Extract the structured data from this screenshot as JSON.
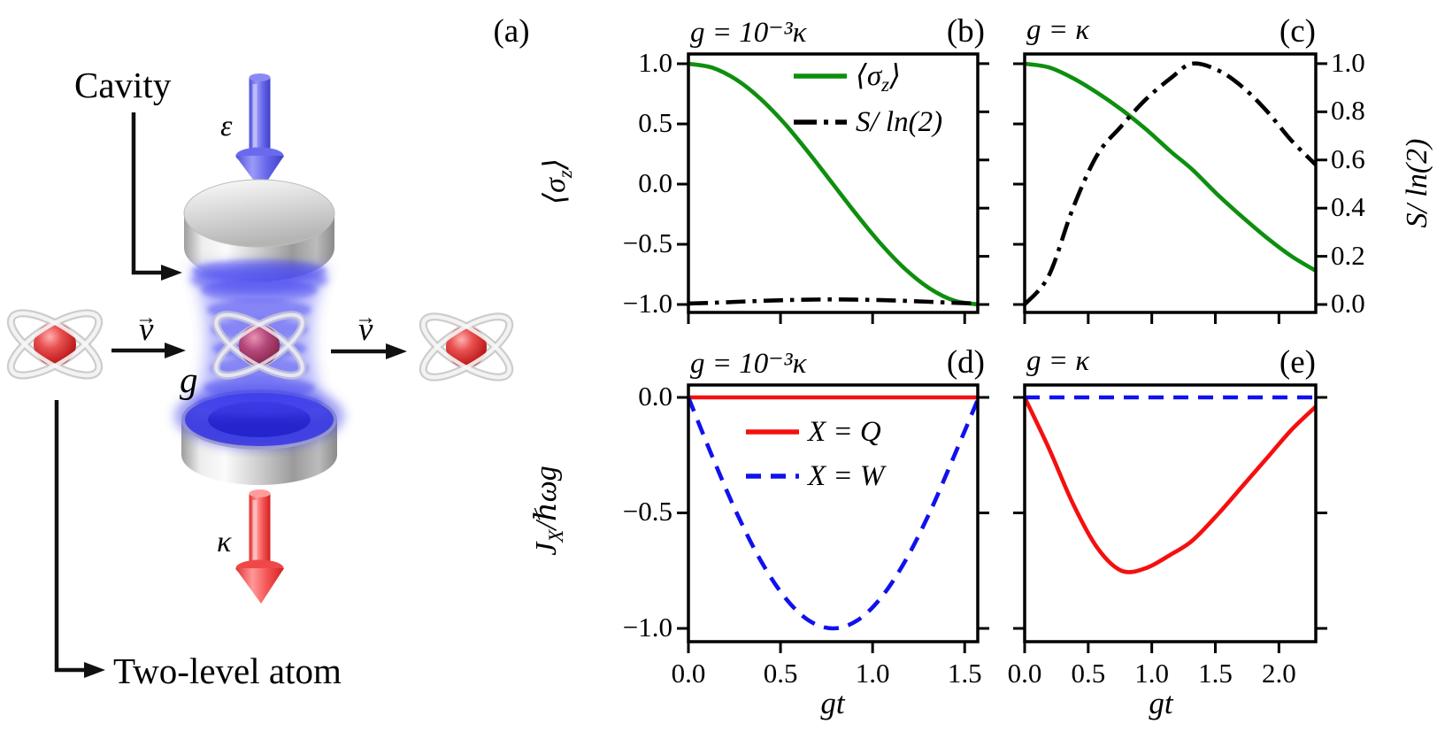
{
  "figure_labels": {
    "a": "(a)",
    "b": "(b)",
    "c": "(c)",
    "d": "(d)",
    "e": "(e)"
  },
  "diagram": {
    "cavity_label": "Cavity",
    "pump_symbol": "ε",
    "coupling_symbol": "g",
    "decay_symbol": "κ",
    "velocity_symbol": "v",
    "velocity_arrow": "→",
    "atom_caption": "Two-level atom"
  },
  "titles": {
    "weak": "g = 10⁻³κ",
    "strong": "g = κ"
  },
  "axis_labels": {
    "sigma_pre": "⟨σ",
    "sigma_sub": "z",
    "sigma_post": "⟩",
    "entropy": "S/ ln(2)",
    "heat_pre": "J",
    "heat_sub": "X",
    "heat_post": "/ℏωg",
    "x": "gt"
  },
  "chart_data": [
    {
      "id": "b",
      "type": "line",
      "panel_label": "(b)",
      "title": "g = 10⁻³κ",
      "xlabel": "gt",
      "ylabel_left": "⟨σ_z⟩",
      "ylabel_right": "S/ln(2)",
      "xlim": [
        0,
        1.571
      ],
      "ylim_left": [
        -1.066,
        1.081
      ],
      "ylim_right": [
        -0.033,
        1.04
      ],
      "x": [
        0,
        0.131,
        0.262,
        0.393,
        0.524,
        0.654,
        0.785,
        0.916,
        1.047,
        1.178,
        1.309,
        1.44,
        1.571
      ],
      "series": [
        {
          "name": "⟨σ_z⟩",
          "axis": "left",
          "color": "#0e8f0e",
          "dash": "solid",
          "y": [
            1.0,
            0.966,
            0.866,
            0.707,
            0.5,
            0.259,
            0.0,
            -0.259,
            -0.5,
            -0.707,
            -0.866,
            -0.966,
            -1.0
          ]
        },
        {
          "name": "S/ln(2)",
          "axis": "right",
          "color": "#000000",
          "dash": "dashdot",
          "y": [
            0.004,
            0.007,
            0.011,
            0.015,
            0.018,
            0.02,
            0.021,
            0.02,
            0.018,
            0.015,
            0.011,
            0.007,
            0.004
          ]
        }
      ],
      "ticks": {
        "left": {
          "values": [
            1.0,
            0.5,
            0.0,
            -0.5,
            -1.0
          ],
          "labels": [
            "1.0",
            "0.5",
            "0.0",
            "−0.5",
            "−1.0"
          ]
        },
        "right": {
          "values": [
            1.0,
            0.8,
            0.6,
            0.4,
            0.2,
            0.0
          ],
          "labels": null
        },
        "bottom": {
          "values": [
            0.0,
            0.5,
            1.0,
            1.5
          ],
          "labels": null
        }
      },
      "legend": [
        {
          "parts": [
            {
              "t": "⟨σ"
            },
            {
              "t": "z",
              "sub": true
            },
            {
              "t": "⟩"
            }
          ],
          "color": "#0e8f0e",
          "dash": "solid"
        },
        {
          "parts": [
            {
              "t": "S/ ln(2)"
            }
          ],
          "color": "#000000",
          "dash": "dashdot"
        }
      ]
    },
    {
      "id": "c",
      "type": "line",
      "panel_label": "(c)",
      "title": "g = κ",
      "xlabel": "gt",
      "ylabel_left": "⟨σ_z⟩",
      "ylabel_right": "S/ln(2)",
      "xlim": [
        0,
        2.29
      ],
      "ylim_left": [
        -1.066,
        1.081
      ],
      "ylim_right": [
        -0.033,
        1.04
      ],
      "x": [
        0,
        0.19,
        0.38,
        0.57,
        0.76,
        0.95,
        1.15,
        1.32,
        1.53,
        1.72,
        1.91,
        2.1,
        2.29
      ],
      "series": [
        {
          "name": "⟨σ_z⟩",
          "axis": "left",
          "color": "#0e8f0e",
          "dash": "solid",
          "y": [
            1.0,
            0.97,
            0.88,
            0.76,
            0.62,
            0.46,
            0.27,
            0.12,
            -0.1,
            -0.28,
            -0.45,
            -0.6,
            -0.72
          ]
        },
        {
          "name": "S/ln(2)",
          "axis": "right",
          "color": "#000000",
          "dash": "dashdot",
          "y": [
            0.0,
            0.12,
            0.4,
            0.62,
            0.74,
            0.85,
            0.94,
            1.0,
            0.97,
            0.9,
            0.8,
            0.68,
            0.58
          ]
        }
      ],
      "ticks": {
        "left": {
          "values": [
            1.0,
            0.5,
            0.0,
            -0.5,
            -1.0
          ],
          "labels": null
        },
        "right": {
          "values": [
            1.0,
            0.8,
            0.6,
            0.4,
            0.2,
            0.0
          ],
          "labels": [
            "1.0",
            "0.8",
            "0.6",
            "0.4",
            "0.2",
            "0.0"
          ]
        },
        "bottom": {
          "values": [
            0.0,
            0.5,
            1.0,
            1.5,
            2.0
          ],
          "labels": null
        }
      },
      "legend": null
    },
    {
      "id": "d",
      "type": "line",
      "panel_label": "(d)",
      "title": "g = 10⁻³κ",
      "xlabel": "gt",
      "ylabel_left": "J_X/ℏωg",
      "xlim": [
        0,
        1.571
      ],
      "ylim_left": [
        -1.0575,
        0.0536
      ],
      "x": [
        0,
        0.131,
        0.262,
        0.393,
        0.524,
        0.654,
        0.785,
        0.916,
        1.047,
        1.178,
        1.309,
        1.44,
        1.571
      ],
      "series": [
        {
          "name": "X = Q",
          "axis": "left",
          "color": "#f50f0f",
          "dash": "solid",
          "y": [
            0,
            0,
            0,
            0,
            0,
            0,
            0,
            0,
            0,
            0,
            0,
            0,
            0
          ]
        },
        {
          "name": "X = W",
          "axis": "left",
          "color": "#1111ee",
          "dash": "dashed",
          "y": [
            0.0,
            -0.259,
            -0.5,
            -0.707,
            -0.866,
            -0.966,
            -1.0,
            -0.966,
            -0.866,
            -0.707,
            -0.5,
            -0.259,
            -0.01
          ]
        }
      ],
      "ticks": {
        "left": {
          "values": [
            0.0,
            -0.5,
            -1.0
          ],
          "labels": [
            "0.0",
            "−0.5",
            "−1.0"
          ]
        },
        "right": {
          "values": [
            0.0,
            -0.5,
            -1.0
          ],
          "labels": null
        },
        "bottom": {
          "values": [
            0.0,
            0.5,
            1.0,
            1.5
          ],
          "labels": [
            "0.0",
            "0.5",
            "1.0",
            "1.5"
          ]
        }
      },
      "legend": [
        {
          "parts": [
            {
              "t": "X = Q"
            }
          ],
          "color": "#f50f0f",
          "dash": "solid"
        },
        {
          "parts": [
            {
              "t": "X = W"
            }
          ],
          "color": "#1111ee",
          "dash": "dashed"
        }
      ]
    },
    {
      "id": "e",
      "type": "line",
      "panel_label": "(e)",
      "title": "g = κ",
      "xlabel": "gt",
      "ylabel_left": "J_X/ℏωg",
      "xlim": [
        0,
        2.29
      ],
      "ylim_left": [
        -1.0575,
        0.0536
      ],
      "x": [
        0,
        0.19,
        0.38,
        0.57,
        0.76,
        0.95,
        1.15,
        1.32,
        1.53,
        1.72,
        1.91,
        2.1,
        2.29
      ],
      "series": [
        {
          "name": "X = Q",
          "axis": "left",
          "color": "#f50f0f",
          "dash": "solid",
          "y": [
            0.0,
            -0.22,
            -0.46,
            -0.65,
            -0.75,
            -0.74,
            -0.68,
            -0.62,
            -0.5,
            -0.38,
            -0.26,
            -0.14,
            -0.04
          ]
        },
        {
          "name": "X = W",
          "axis": "left",
          "color": "#1111ee",
          "dash": "dashed",
          "y": [
            0,
            0,
            0,
            0,
            0,
            0,
            0,
            0,
            0,
            0,
            0,
            0,
            0
          ]
        }
      ],
      "ticks": {
        "left": {
          "values": [
            0.0,
            -0.5,
            -1.0
          ],
          "labels": null
        },
        "right": {
          "values": [
            0.0,
            -0.5,
            -1.0
          ],
          "labels": null
        },
        "bottom": {
          "values": [
            0.0,
            0.5,
            1.0,
            1.5,
            2.0
          ],
          "labels": [
            "0.0",
            "0.5",
            "1.0",
            "1.5",
            "2.0"
          ]
        }
      },
      "legend": null
    }
  ]
}
